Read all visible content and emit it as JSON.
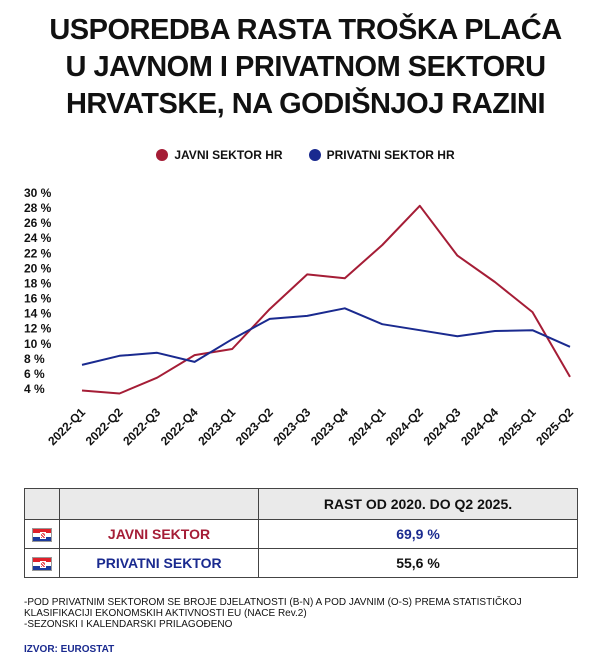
{
  "title_lines": [
    "USPOREDBA RASTA TROŠKA PLAĆA",
    "U JAVNOM I PRIVATNOM SEKTORU",
    "HRVATSKE, NA GODIŠNJOJ RAZINI"
  ],
  "legend": [
    {
      "label": "JAVNI SEKTOR HR",
      "color": "#a51d36"
    },
    {
      "label": "PRIVATNI SEKTOR HR",
      "color": "#1a2a8f"
    }
  ],
  "chart_data": {
    "type": "line",
    "title": "USPOREDBA RASTA TROŠKA PLAĆA U JAVNOM I PRIVATNOM SEKTORU HRVATSKE, NA GODIŠNJOJ RAZINI",
    "xlabel": "",
    "ylabel": "",
    "ylim": [
      4,
      30
    ],
    "yticks": [
      "30 %",
      "28 %",
      "26 %",
      "24 %",
      "22 %",
      "20 %",
      "18 %",
      "16 %",
      "14 %",
      "12 %",
      "10 %",
      "8 %",
      "6 %",
      "4 %"
    ],
    "ytick_values": [
      30,
      28,
      26,
      24,
      22,
      20,
      18,
      16,
      14,
      12,
      10,
      8,
      6,
      4
    ],
    "grid": false,
    "legend_position": "top-center",
    "categories": [
      "2022-Q1",
      "2022-Q2",
      "2022-Q3",
      "2022-Q4",
      "2023-Q1",
      "2023-Q2",
      "2023-Q3",
      "2023-Q4",
      "2024-Q1",
      "2024-Q2",
      "2024-Q3",
      "2024-Q4",
      "2025-Q1",
      "2025-Q2"
    ],
    "series": [
      {
        "name": "JAVNI SEKTOR HR",
        "color": "#a51d36",
        "values": [
          3.8,
          3.4,
          5.5,
          8.5,
          9.3,
          14.6,
          19.2,
          18.7,
          23.1,
          28.3,
          21.7,
          18.2,
          14.2,
          5.6
        ]
      },
      {
        "name": "PRIVATNI SEKTOR HR",
        "color": "#1a2a8f",
        "values": [
          7.2,
          8.4,
          8.8,
          7.6,
          10.6,
          13.3,
          13.7,
          14.7,
          12.6,
          11.8,
          11.0,
          11.7,
          11.8,
          9.6
        ]
      }
    ]
  },
  "table": {
    "header": "RAST OD 2020. DO Q2 2025.",
    "rows": [
      {
        "label": "JAVNI SEKTOR",
        "label_color": "#a51d36",
        "value": "69,9 %",
        "value_color": "#1a2a8f",
        "flag": "croatia-flag"
      },
      {
        "label": "PRIVATNI SEKTOR",
        "label_color": "#1a2a8f",
        "value": "55,6 %",
        "value_color": "#111111",
        "flag": "croatia-flag"
      }
    ]
  },
  "notes": [
    "-POD PRIVATNIM SEKTOROM SE BROJE DJELATNOSTI (B-N) A POD JAVNIM (O-S) PREMA STATISTIČKOJ KLASIFIKACIJI EKONOMSKIH AKTIVNOSTI EU (NACE Rev.2)",
    "-SEZONSKI I KALENDARSKI PRILAGOĐENO"
  ],
  "source": "IZVOR: EUROSTAT"
}
